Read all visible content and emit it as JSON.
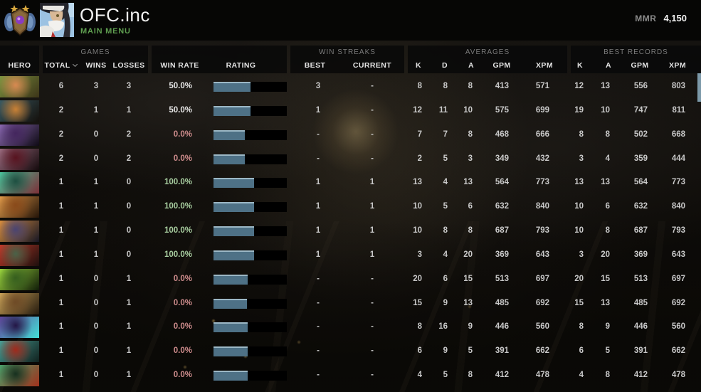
{
  "header": {
    "title": "OFC.inc",
    "subtitle": "MAIN MENU",
    "mmr_label": "MMR",
    "mmr_value": "4,150"
  },
  "table": {
    "groups": {
      "games": "GAMES",
      "win_streaks": "WIN STREAKS",
      "averages": "AVERAGES",
      "best_records": "BEST RECORDS"
    },
    "columns": {
      "hero": "HERO",
      "total": "TOTAL",
      "wins": "WINS",
      "losses": "LOSSES",
      "win_rate": "WIN RATE",
      "rating": "RATING",
      "best": "BEST",
      "current": "CURRENT",
      "k": "K",
      "d": "D",
      "a": "A",
      "gpm": "GPM",
      "xpm": "XPM"
    },
    "sort": {
      "column": "TOTAL",
      "direction": "descending"
    },
    "rows": [
      {
        "total": "6",
        "wins": "3",
        "losses": "3",
        "win_rate": "50.0%",
        "win_rate_tone": "mid",
        "rating_fill": 0.5,
        "streak_best": "3",
        "streak_current": "-",
        "avg_k": "8",
        "avg_d": "8",
        "avg_a": "8",
        "avg_gpm": "413",
        "avg_xpm": "571",
        "best_k": "12",
        "best_a": "13",
        "best_gpm": "556",
        "best_xpm": "803",
        "hero_colors": [
          "#7d9440",
          "#d88a52",
          "#3c3418"
        ]
      },
      {
        "total": "2",
        "wins": "1",
        "losses": "1",
        "win_rate": "50.0%",
        "win_rate_tone": "mid",
        "rating_fill": 0.5,
        "streak_best": "1",
        "streak_current": "-",
        "avg_k": "12",
        "avg_d": "11",
        "avg_a": "10",
        "avg_gpm": "575",
        "avg_xpm": "699",
        "best_k": "19",
        "best_a": "10",
        "best_gpm": "747",
        "best_xpm": "811",
        "hero_colors": [
          "#3a5a62",
          "#c98136",
          "#14100c"
        ]
      },
      {
        "total": "2",
        "wins": "0",
        "losses": "2",
        "win_rate": "0.0%",
        "win_rate_tone": "low",
        "rating_fill": 0.43,
        "streak_best": "-",
        "streak_current": "-",
        "avg_k": "7",
        "avg_d": "7",
        "avg_a": "8",
        "avg_gpm": "468",
        "avg_xpm": "666",
        "best_k": "8",
        "best_a": "8",
        "best_gpm": "502",
        "best_xpm": "668",
        "hero_colors": [
          "#8a68b0",
          "#44265e",
          "#0e0a14"
        ]
      },
      {
        "total": "2",
        "wins": "0",
        "losses": "2",
        "win_rate": "0.0%",
        "win_rate_tone": "low",
        "rating_fill": 0.43,
        "streak_best": "-",
        "streak_current": "-",
        "avg_k": "2",
        "avg_d": "5",
        "avg_a": "3",
        "avg_gpm": "349",
        "avg_xpm": "432",
        "best_k": "3",
        "best_a": "4",
        "best_gpm": "359",
        "best_xpm": "444",
        "hero_colors": [
          "#9a6a7e",
          "#58131f",
          "#140a0c"
        ]
      },
      {
        "total": "1",
        "wins": "1",
        "losses": "0",
        "win_rate": "100.0%",
        "win_rate_tone": "high",
        "rating_fill": 0.55,
        "streak_best": "1",
        "streak_current": "1",
        "avg_k": "13",
        "avg_d": "4",
        "avg_a": "13",
        "avg_gpm": "564",
        "avg_xpm": "773",
        "best_k": "13",
        "best_a": "13",
        "best_gpm": "564",
        "best_xpm": "773",
        "hero_colors": [
          "#49c49b",
          "#1e4f41",
          "#7c2f38"
        ]
      },
      {
        "total": "1",
        "wins": "1",
        "losses": "0",
        "win_rate": "100.0%",
        "win_rate_tone": "high",
        "rating_fill": 0.55,
        "streak_best": "1",
        "streak_current": "1",
        "avg_k": "10",
        "avg_d": "5",
        "avg_a": "6",
        "avg_gpm": "632",
        "avg_xpm": "840",
        "best_k": "10",
        "best_a": "6",
        "best_gpm": "632",
        "best_xpm": "840",
        "hero_colors": [
          "#e09a4a",
          "#8a4a1a",
          "#241408"
        ]
      },
      {
        "total": "1",
        "wins": "1",
        "losses": "0",
        "win_rate": "100.0%",
        "win_rate_tone": "high",
        "rating_fill": 0.55,
        "streak_best": "1",
        "streak_current": "1",
        "avg_k": "10",
        "avg_d": "8",
        "avg_a": "8",
        "avg_gpm": "687",
        "avg_xpm": "793",
        "best_k": "10",
        "best_a": "8",
        "best_gpm": "687",
        "best_xpm": "793",
        "hero_colors": [
          "#d98e3e",
          "#4a4472",
          "#161624"
        ]
      },
      {
        "total": "1",
        "wins": "1",
        "losses": "0",
        "win_rate": "100.0%",
        "win_rate_tone": "high",
        "rating_fill": 0.55,
        "streak_best": "1",
        "streak_current": "1",
        "avg_k": "3",
        "avg_d": "4",
        "avg_a": "20",
        "avg_gpm": "369",
        "avg_xpm": "643",
        "best_k": "3",
        "best_a": "20",
        "best_gpm": "369",
        "best_xpm": "643",
        "hero_colors": [
          "#c13a2a",
          "#4a6248",
          "#1c0f0d"
        ]
      },
      {
        "total": "1",
        "wins": "0",
        "losses": "1",
        "win_rate": "0.0%",
        "win_rate_tone": "low",
        "rating_fill": 0.47,
        "streak_best": "-",
        "streak_current": "-",
        "avg_k": "20",
        "avg_d": "6",
        "avg_a": "15",
        "avg_gpm": "513",
        "avg_xpm": "697",
        "best_k": "20",
        "best_a": "15",
        "best_gpm": "513",
        "best_xpm": "697",
        "hero_colors": [
          "#9ad43e",
          "#355e1e",
          "#101c08"
        ]
      },
      {
        "total": "1",
        "wins": "0",
        "losses": "1",
        "win_rate": "0.0%",
        "win_rate_tone": "low",
        "rating_fill": 0.46,
        "streak_best": "-",
        "streak_current": "-",
        "avg_k": "15",
        "avg_d": "9",
        "avg_a": "13",
        "avg_gpm": "485",
        "avg_xpm": "692",
        "best_k": "15",
        "best_a": "13",
        "best_gpm": "485",
        "best_xpm": "692",
        "hero_colors": [
          "#caa258",
          "#6e4a26",
          "#241a0e"
        ]
      },
      {
        "total": "1",
        "wins": "0",
        "losses": "1",
        "win_rate": "0.0%",
        "win_rate_tone": "low",
        "rating_fill": 0.47,
        "streak_best": "-",
        "streak_current": "-",
        "avg_k": "8",
        "avg_d": "16",
        "avg_a": "9",
        "avg_gpm": "446",
        "avg_xpm": "560",
        "best_k": "8",
        "best_a": "9",
        "best_gpm": "446",
        "best_xpm": "560",
        "hero_colors": [
          "#5e4398",
          "#241646",
          "#44e0d8"
        ]
      },
      {
        "total": "1",
        "wins": "0",
        "losses": "1",
        "win_rate": "0.0%",
        "win_rate_tone": "low",
        "rating_fill": 0.47,
        "streak_best": "-",
        "streak_current": "-",
        "avg_k": "6",
        "avg_d": "9",
        "avg_a": "5",
        "avg_gpm": "391",
        "avg_xpm": "662",
        "best_k": "6",
        "best_a": "5",
        "best_gpm": "391",
        "best_xpm": "662",
        "hero_colors": [
          "#4a9e94",
          "#a12a1c",
          "#10211e"
        ]
      },
      {
        "total": "1",
        "wins": "0",
        "losses": "1",
        "win_rate": "0.0%",
        "win_rate_tone": "low",
        "rating_fill": 0.47,
        "streak_best": "-",
        "streak_current": "-",
        "avg_k": "4",
        "avg_d": "5",
        "avg_a": "8",
        "avg_gpm": "412",
        "avg_xpm": "478",
        "best_k": "4",
        "best_a": "8",
        "best_gpm": "412",
        "best_xpm": "478",
        "hero_colors": [
          "#49a06a",
          "#16301f",
          "#a1311c"
        ]
      }
    ]
  },
  "colors": {
    "accent_green": "#5f9e50",
    "win_rate_mid": "#e8e8e8",
    "win_rate_low": "#cf8d8d",
    "win_rate_high": "#a9cfa1",
    "rating_bar_fill": "#4e7186",
    "rating_bar_edge": "#9cb8c6",
    "scrollbar_thumb": "#7c99a9"
  }
}
